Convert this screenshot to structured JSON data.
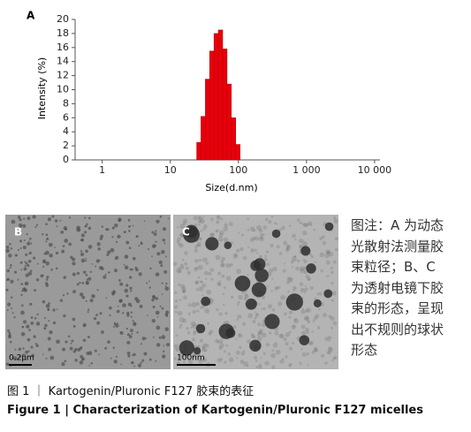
{
  "chart_data": {
    "type": "histogram",
    "label": "A",
    "xlabel": "Size(d.nm)",
    "ylabel": "Intensity (%)",
    "xscale": "log",
    "color": "#e8000b",
    "bins": [
      24.4,
      28.2,
      32.7,
      37.8,
      43.8,
      50.7,
      58.8,
      68.1,
      78.8,
      91.3,
      105.7
    ],
    "values": [
      2.5,
      6.2,
      11.5,
      15.5,
      18,
      18.5,
      15.8,
      10.8,
      6,
      2.2
    ],
    "xlim": [
      0.4,
      12000
    ],
    "xticks": [
      1,
      10,
      100,
      {
        "value": 1000,
        "label": "1 000"
      },
      {
        "value": 10000,
        "label": "10 000"
      }
    ],
    "ylim": [
      0,
      20
    ],
    "yticks": [
      0,
      2,
      4,
      6,
      8,
      10,
      12,
      14,
      16,
      18,
      20
    ]
  },
  "panels": [
    {
      "label": "B",
      "scale_bar": "0.2μm"
    },
    {
      "label": "C",
      "scale_bar": "100nm"
    }
  ],
  "note_lines": [
    "图注：A 为动态",
    "光散射法测量胶",
    "束粒径；B、C",
    "为透射电镜下胶",
    "束的形态，呈现",
    "出不规则的球状",
    "形态"
  ],
  "caption": {
    "chinese": "图 1 ｜ Kartogenin/Pluronic F127 胶束的表征",
    "english": "Figure 1 | Characterization of Kartogenin/Pluronic F127 micelles"
  }
}
